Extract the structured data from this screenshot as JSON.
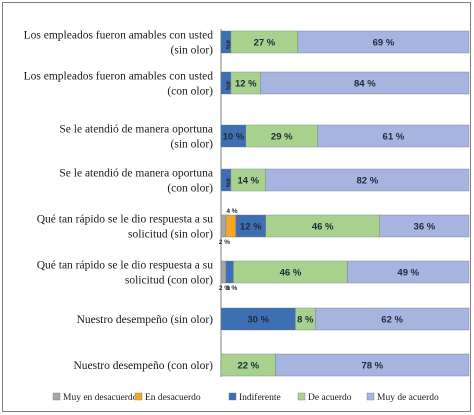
{
  "chart_data": {
    "type": "bar",
    "stacked": true,
    "orientation": "horizontal",
    "percent": true,
    "categories": [
      [
        "Los empleados fueron amables con usted",
        "(sin olor)"
      ],
      [
        "Los empleados fueron amables con usted",
        "(con olor)"
      ],
      [
        "Se le atendió de manera oportuna",
        "(sin olor)"
      ],
      [
        "Se le atendió de manera oportuna",
        "(con olor)"
      ],
      [
        "Qué tan rápido se le dio respuesta a su",
        "solicitud (sin olor)"
      ],
      [
        "Qué tan rápido se le dio respuesta a su",
        "solicitud (con olor)"
      ],
      [
        "Nuestro desempeño (sin olor)"
      ],
      [
        "Nuestro desempeño (con olor)"
      ]
    ],
    "series": [
      {
        "name": "Muy en desacuerdo",
        "color": "#a6a6a6",
        "values": [
          0,
          0,
          0,
          0,
          2,
          2,
          0,
          0
        ]
      },
      {
        "name": "En desacuerdo",
        "color": "#f5a623",
        "values": [
          0,
          0,
          0,
          0,
          4,
          0,
          0,
          0
        ]
      },
      {
        "name": "Indiferente",
        "color": "#3f6fb3",
        "values": [
          4,
          4,
          10,
          4,
          12,
          3,
          30,
          0
        ]
      },
      {
        "name": "De acuerdo",
        "color": "#a9d18e",
        "values": [
          27,
          12,
          29,
          14,
          46,
          46,
          8,
          22
        ]
      },
      {
        "name": "Muy de acuerdo",
        "color": "#a7b4e0",
        "values": [
          69,
          84,
          61,
          82,
          36,
          49,
          62,
          78
        ]
      }
    ],
    "data_labels": [
      [
        null,
        null,
        "4%",
        "27 %",
        "69 %"
      ],
      [
        null,
        null,
        "4%",
        "12 %",
        "84 %"
      ],
      [
        null,
        null,
        "10 %",
        "29 %",
        "61 %"
      ],
      [
        null,
        null,
        "4%",
        "14 %",
        "82 %"
      ],
      [
        "2 %",
        "4 %",
        "12 %",
        "46 %",
        "36 %"
      ],
      [
        "2 %",
        null,
        "3 %",
        "46 %",
        "49 %"
      ],
      [
        null,
        null,
        "30 %",
        "8 %",
        "62 %"
      ],
      [
        null,
        null,
        null,
        "22 %",
        "78 %"
      ]
    ],
    "legend_position": "bottom",
    "grid": false
  }
}
